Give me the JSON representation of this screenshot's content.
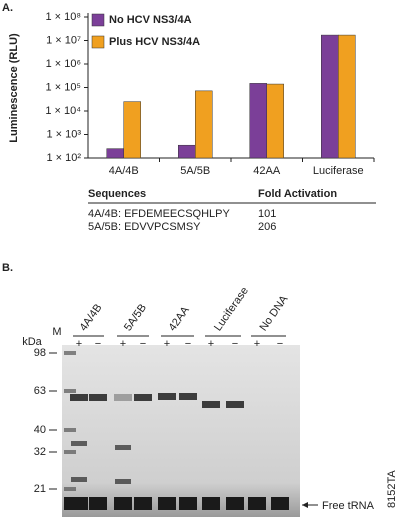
{
  "panel_labels": [
    "A.",
    "B."
  ],
  "chart_data": {
    "type": "bar",
    "y_label": "Luminescence (RLU)",
    "categories": [
      "4A/4B",
      "5A/5B",
      "42AA",
      "Luciferase"
    ],
    "series": [
      {
        "name": "No HCV NS3/4A",
        "color": "#7b3f98",
        "values": [
          250,
          350,
          150000,
          17000000
        ]
      },
      {
        "name": "Plus HCV NS3/4A",
        "color": "#f0a020",
        "values": [
          25000,
          72000,
          140000,
          17000000
        ]
      }
    ],
    "ylim": [
      100,
      100000000
    ],
    "yticks": [
      {
        "value": 100,
        "label": "1 × 10²"
      },
      {
        "value": 1000,
        "label": "1 × 10³"
      },
      {
        "value": 10000,
        "label": "1 × 10⁴"
      },
      {
        "value": 100000,
        "label": "1 × 10⁵"
      },
      {
        "value": 1000000,
        "label": "1 × 10⁶"
      },
      {
        "value": 10000000,
        "label": "1 × 10⁷"
      },
      {
        "value": 100000000,
        "label": "1 × 10⁸"
      }
    ],
    "log_scale": true,
    "legend": "top-left",
    "grid": false
  },
  "table": {
    "headers": [
      "Sequences",
      "Fold Activation"
    ],
    "rows": [
      [
        "4A/4B: EFDEMEECSQHLPY",
        101
      ],
      [
        "5A/5B: EDVVPCSMSY",
        206
      ]
    ]
  },
  "gel": {
    "marker_label": "M",
    "unit_label": "kDa",
    "markers": [
      98,
      63,
      40,
      32,
      21
    ],
    "lanes": [
      {
        "name": "4A/4B",
        "signs": [
          "+",
          "−"
        ]
      },
      {
        "name": "5A/5B",
        "signs": [
          "+",
          "−"
        ]
      },
      {
        "name": "42AA",
        "signs": [
          "+",
          "−"
        ]
      },
      {
        "name": "Luciferase",
        "signs": [
          "+",
          "−"
        ]
      },
      {
        "name": "No DNA",
        "signs": [
          "+",
          "−"
        ]
      }
    ],
    "band_label": "Free tRNA",
    "code": "8152TA"
  }
}
